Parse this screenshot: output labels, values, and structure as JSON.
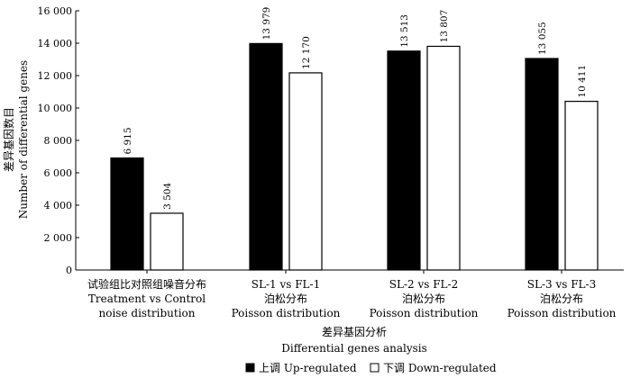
{
  "chart_data": {
    "type": "bar",
    "ylim": [
      0,
      16000
    ],
    "yticks": [
      0,
      2000,
      4000,
      6000,
      8000,
      10000,
      12000,
      14000,
      16000
    ],
    "ytick_labels": [
      "0",
      "2 000",
      "4 000",
      "6 000",
      "8 000",
      "10 000",
      "12 000",
      "14 000",
      "16 000"
    ],
    "ylabel_cn": "差异基因数目",
    "ylabel_en": "Number of differential genes",
    "xlabel_cn": "差异基因分析",
    "xlabel_en": "Differential genes analysis",
    "categories": [
      {
        "line1": "试验组比对照组噪音分布",
        "line2": "Treatment vs Control",
        "line3": "noise distribution"
      },
      {
        "line1": "SL-1 vs FL-1",
        "line2": "泊松分布",
        "line3": "Poisson distribution"
      },
      {
        "line1": "SL-2 vs FL-2",
        "line2": "泊松分布",
        "line3": "Poisson distribution"
      },
      {
        "line1": "SL-3 vs FL-3",
        "line2": "泊松分布",
        "line3": "Poisson distribution"
      }
    ],
    "series": [
      {
        "name": "上调 Up-regulated",
        "color": "#000000",
        "values": [
          6915,
          13979,
          13513,
          13055
        ],
        "labels": [
          "6 915",
          "13 979",
          "13 513",
          "13 055"
        ]
      },
      {
        "name": "下调 Down-regulated",
        "color": "#ffffff",
        "values": [
          3504,
          12170,
          13807,
          10411
        ],
        "labels": [
          "3 504",
          "12 170",
          "13 807",
          "10 411"
        ]
      }
    ],
    "legend_position": "bottom"
  }
}
